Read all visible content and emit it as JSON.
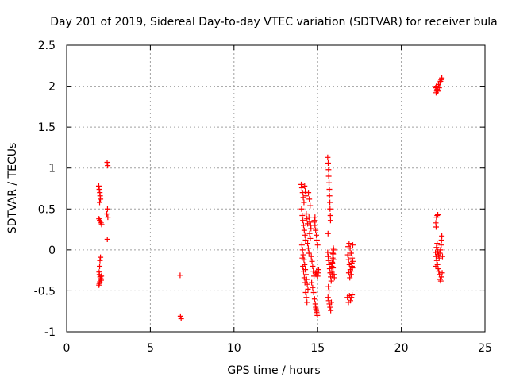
{
  "chart_data": {
    "type": "scatter",
    "title": "Day 201 of 2019, Sidereal Day-to-day VTEC variation (SDTVAR) for receiver bula",
    "xlabel": "GPS time / hours",
    "ylabel": "SDTVAR / TECUs",
    "xlim": [
      0,
      25
    ],
    "ylim": [
      -1,
      2.5
    ],
    "xticks": [
      0,
      5,
      10,
      15,
      20,
      25
    ],
    "xtick_labels": [
      "0",
      "5",
      "10",
      "15",
      "20",
      "25"
    ],
    "yticks": [
      -1,
      -0.5,
      0,
      0.5,
      1,
      1.5,
      2,
      2.5
    ],
    "ytick_labels": [
      "-1",
      "-0.5",
      "0",
      "0.5",
      "1",
      "1.5",
      "2",
      "2.5"
    ],
    "grid": true,
    "marker": "+",
    "colors": {
      "series": "#ff0000",
      "grid": "#a0a0a0",
      "axes": "#000000"
    },
    "series": [
      {
        "name": "SDTVAR",
        "points": [
          [
            1.92,
            0.78
          ],
          [
            1.95,
            0.74
          ],
          [
            1.98,
            0.7
          ],
          [
            2.0,
            0.66
          ],
          [
            2.02,
            0.62
          ],
          [
            1.97,
            0.58
          ],
          [
            1.93,
            0.38
          ],
          [
            1.97,
            0.36
          ],
          [
            2.01,
            0.35
          ],
          [
            2.05,
            0.33
          ],
          [
            2.09,
            0.31
          ],
          [
            2.02,
            -0.09
          ],
          [
            1.99,
            -0.13
          ],
          [
            1.97,
            -0.2
          ],
          [
            1.94,
            -0.27
          ],
          [
            1.96,
            -0.3
          ],
          [
            2.0,
            -0.33
          ],
          [
            2.03,
            -0.35
          ],
          [
            2.06,
            -0.37
          ],
          [
            1.98,
            -0.39
          ],
          [
            1.95,
            -0.41
          ],
          [
            1.93,
            -0.43
          ],
          [
            2.07,
            -0.32
          ],
          [
            2.42,
            1.07
          ],
          [
            2.45,
            1.03
          ],
          [
            2.44,
            0.5
          ],
          [
            2.4,
            0.44
          ],
          [
            2.46,
            0.4
          ],
          [
            2.43,
            0.13
          ],
          [
            6.78,
            -0.31
          ],
          [
            6.8,
            -0.81
          ],
          [
            6.84,
            -0.84
          ],
          [
            14.02,
            0.8
          ],
          [
            14.06,
            0.76
          ],
          [
            14.1,
            0.7
          ],
          [
            14.14,
            0.64
          ],
          [
            14.18,
            0.58
          ],
          [
            14.22,
            0.78
          ],
          [
            14.26,
            0.72
          ],
          [
            14.3,
            0.66
          ],
          [
            14.04,
            0.5
          ],
          [
            14.08,
            0.42
          ],
          [
            14.12,
            0.36
          ],
          [
            14.16,
            0.3
          ],
          [
            14.2,
            0.24
          ],
          [
            14.24,
            0.18
          ],
          [
            14.28,
            0.12
          ],
          [
            14.32,
            0.44
          ],
          [
            14.36,
            0.38
          ],
          [
            14.4,
            0.32
          ],
          [
            14.06,
            0.06
          ],
          [
            14.1,
            0.0
          ],
          [
            14.14,
            -0.06
          ],
          [
            14.18,
            -0.12
          ],
          [
            14.22,
            -0.18
          ],
          [
            14.26,
            -0.24
          ],
          [
            14.3,
            -0.3
          ],
          [
            14.34,
            -0.36
          ],
          [
            14.38,
            -0.42
          ],
          [
            14.42,
            -0.48
          ],
          [
            14.08,
            -0.1
          ],
          [
            14.12,
            -0.2
          ],
          [
            14.16,
            -0.26
          ],
          [
            14.2,
            -0.34
          ],
          [
            14.24,
            -0.4
          ],
          [
            14.28,
            -0.52
          ],
          [
            14.32,
            -0.58
          ],
          [
            14.36,
            -0.64
          ],
          [
            14.4,
            0.08
          ],
          [
            14.44,
            0.02
          ],
          [
            14.48,
            -0.04
          ],
          [
            14.52,
            0.2
          ],
          [
            14.56,
            0.14
          ],
          [
            14.6,
            0.26
          ],
          [
            14.45,
            0.7
          ],
          [
            14.5,
            0.62
          ],
          [
            14.55,
            0.54
          ],
          [
            14.48,
            0.4
          ],
          [
            14.52,
            0.34
          ],
          [
            14.58,
            0.3
          ],
          [
            14.62,
            -0.08
          ],
          [
            14.66,
            -0.14
          ],
          [
            14.7,
            -0.2
          ],
          [
            14.74,
            -0.26
          ],
          [
            14.78,
            -0.32
          ],
          [
            14.64,
            -0.4
          ],
          [
            14.7,
            -0.46
          ],
          [
            14.76,
            -0.52
          ],
          [
            14.82,
            -0.6
          ],
          [
            14.86,
            -0.66
          ],
          [
            14.9,
            -0.72
          ],
          [
            14.94,
            -0.76
          ],
          [
            14.98,
            -0.8
          ],
          [
            14.88,
            -0.7
          ],
          [
            14.92,
            -0.74
          ],
          [
            14.96,
            -0.78
          ],
          [
            14.8,
            0.36
          ],
          [
            14.84,
            0.3
          ],
          [
            14.88,
            0.24
          ],
          [
            14.92,
            0.18
          ],
          [
            14.96,
            0.12
          ],
          [
            15.0,
            0.06
          ],
          [
            14.84,
            0.4
          ],
          [
            14.78,
            0.34
          ],
          [
            14.86,
            -0.28
          ],
          [
            14.9,
            -0.3
          ],
          [
            14.94,
            -0.26
          ],
          [
            15.0,
            -0.32
          ],
          [
            15.04,
            -0.28
          ],
          [
            15.06,
            -0.24
          ],
          [
            15.6,
            1.13
          ],
          [
            15.63,
            1.06
          ],
          [
            15.65,
            0.98
          ],
          [
            15.66,
            0.9
          ],
          [
            15.68,
            0.82
          ],
          [
            15.7,
            0.74
          ],
          [
            15.71,
            0.66
          ],
          [
            15.73,
            0.58
          ],
          [
            15.74,
            0.5
          ],
          [
            15.76,
            0.42
          ],
          [
            15.77,
            0.36
          ],
          [
            15.62,
            0.2
          ],
          [
            15.6,
            -0.03
          ],
          [
            15.63,
            -0.08
          ],
          [
            15.66,
            -0.13
          ],
          [
            15.69,
            -0.18
          ],
          [
            15.72,
            -0.23
          ],
          [
            15.75,
            -0.28
          ],
          [
            15.78,
            -0.33
          ],
          [
            15.81,
            -0.38
          ],
          [
            15.84,
            -0.2
          ],
          [
            15.87,
            -0.15
          ],
          [
            15.9,
            -0.1
          ],
          [
            15.93,
            -0.05
          ],
          [
            15.96,
            0.0
          ],
          [
            15.62,
            -0.58
          ],
          [
            15.66,
            -0.62
          ],
          [
            15.7,
            -0.66
          ],
          [
            15.74,
            -0.7
          ],
          [
            15.78,
            -0.74
          ],
          [
            15.82,
            -0.64
          ],
          [
            15.64,
            -0.45
          ],
          [
            15.68,
            -0.5
          ],
          [
            15.84,
            -0.26
          ],
          [
            15.88,
            -0.3
          ],
          [
            15.92,
            -0.22
          ],
          [
            15.95,
            -0.12
          ],
          [
            15.98,
            -0.3
          ],
          [
            16.0,
            -0.34
          ],
          [
            15.9,
            -0.04
          ],
          [
            15.94,
            0.02
          ],
          [
            15.88,
            -0.16
          ],
          [
            16.78,
            -0.58
          ],
          [
            16.84,
            -0.64
          ],
          [
            16.9,
            -0.56
          ],
          [
            16.96,
            -0.62
          ],
          [
            17.02,
            -0.58
          ],
          [
            17.06,
            -0.55
          ],
          [
            16.8,
            -0.06
          ],
          [
            16.85,
            -0.12
          ],
          [
            16.9,
            -0.18
          ],
          [
            16.95,
            -0.24
          ],
          [
            17.0,
            -0.3
          ],
          [
            17.05,
            -0.2
          ],
          [
            17.1,
            -0.14
          ],
          [
            16.82,
            0.04
          ],
          [
            16.88,
            0.08
          ],
          [
            16.94,
            0.02
          ],
          [
            17.0,
            -0.04
          ],
          [
            17.06,
            -0.1
          ],
          [
            16.86,
            -0.28
          ],
          [
            16.92,
            -0.34
          ],
          [
            16.98,
            -0.26
          ],
          [
            17.04,
            -0.16
          ],
          [
            17.08,
            -0.22
          ],
          [
            17.1,
            0.06
          ],
          [
            22.05,
            1.98
          ],
          [
            22.1,
            2.0
          ],
          [
            22.14,
            1.96
          ],
          [
            22.18,
            1.94
          ],
          [
            22.22,
            2.02
          ],
          [
            22.26,
            1.98
          ],
          [
            22.3,
            2.04
          ],
          [
            22.34,
            2.06
          ],
          [
            22.38,
            2.08
          ],
          [
            22.42,
            2.1
          ],
          [
            22.08,
            1.92
          ],
          [
            22.12,
            1.94
          ],
          [
            22.1,
            0.4
          ],
          [
            22.14,
            0.42
          ],
          [
            22.18,
            0.43
          ],
          [
            22.06,
            0.33
          ],
          [
            22.08,
            0.28
          ],
          [
            22.04,
            -0.03
          ],
          [
            22.08,
            -0.08
          ],
          [
            22.12,
            -0.13
          ],
          [
            22.16,
            -0.18
          ],
          [
            22.2,
            -0.23
          ],
          [
            22.06,
            -0.2
          ],
          [
            22.1,
            0.03
          ],
          [
            22.14,
            0.08
          ],
          [
            22.18,
            -0.02
          ],
          [
            22.22,
            -0.06
          ],
          [
            22.26,
            -0.1
          ],
          [
            22.3,
            -0.04
          ],
          [
            22.34,
            0.0
          ],
          [
            22.38,
            0.06
          ],
          [
            22.4,
            0.12
          ],
          [
            22.42,
            0.17
          ],
          [
            22.44,
            -0.28
          ],
          [
            22.4,
            -0.33
          ],
          [
            22.36,
            -0.38
          ],
          [
            22.32,
            -0.36
          ],
          [
            22.46,
            -0.08
          ],
          [
            22.28,
            -0.3
          ],
          [
            22.24,
            -0.26
          ]
        ]
      }
    ]
  }
}
